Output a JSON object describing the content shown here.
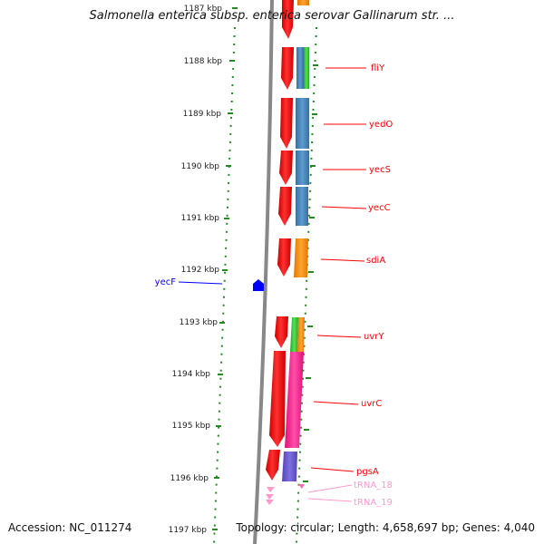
{
  "title": "Salmonella enterica subsp. enterica serovar Gallinarum str. ...",
  "accession": "Accession: NC_011274",
  "topology": "Topology: circular; Length: 4,658,697 bp; Genes: 4,040",
  "ticks": [
    "1187 kbp",
    "1188 kbp",
    "1189 kbp",
    "1190 kbp",
    "1191 kbp",
    "1192 kbp",
    "1193 kbp",
    "1194 kbp",
    "1195 kbp",
    "1196 kbp",
    "1197 kbp"
  ],
  "colors": {
    "cds": "#ff0000",
    "track_blue": "#4682b4",
    "track_orange": "#ff8c00",
    "track_green": "#32cd32",
    "track_pink": "#ff1493",
    "track_purple": "#6a5acd",
    "trna": "#ff99cc",
    "pseudo": "#0000ff",
    "dots": "#228b22",
    "backbone": "#888888"
  },
  "gene_labels": [
    {
      "name": "fliY",
      "color": "#ff0000"
    },
    {
      "name": "yedO",
      "color": "#ff0000"
    },
    {
      "name": "yecS",
      "color": "#ff0000"
    },
    {
      "name": "yecC",
      "color": "#ff0000"
    },
    {
      "name": "sdiA",
      "color": "#ff0000"
    },
    {
      "name": "yecF",
      "color": "#0000ff"
    },
    {
      "name": "uvrY",
      "color": "#ff0000"
    },
    {
      "name": "uvrC",
      "color": "#ff0000"
    },
    {
      "name": "pgsA",
      "color": "#ff0000"
    },
    {
      "name": "tRNA_18",
      "color": "#ff99cc"
    },
    {
      "name": "tRNA_19",
      "color": "#ff99cc"
    }
  ]
}
